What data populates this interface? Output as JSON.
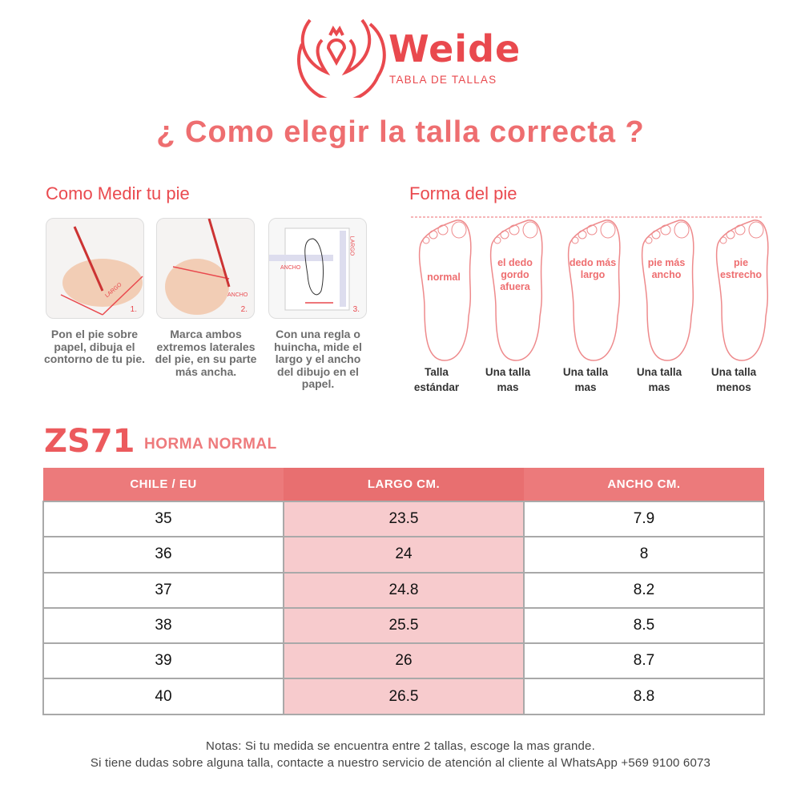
{
  "brand": {
    "name": "Weide",
    "subtitle": "TABLA DE TALLAS",
    "color": "#e9494e"
  },
  "title": "¿ Como elegir la talla correcta ?",
  "measure": {
    "heading": "Como Medir tu pie",
    "steps": [
      {
        "num": "1.",
        "tag": "LARGO",
        "text": "Pon el pie sobre papel, dibuja el contorno de tu pie."
      },
      {
        "num": "2.",
        "tag": "ANCHO",
        "text": "Marca ambos extremos laterales del pie, en su parte más ancha."
      },
      {
        "num": "3.",
        "tag": "ANCHO",
        "tag2": "LARGO",
        "text": "Con una regla o huincha, mide el largo y el ancho del dibujo en el papel."
      }
    ]
  },
  "shape": {
    "heading": "Forma del pie",
    "feet": [
      {
        "label": "normal",
        "caption1": "Talla",
        "caption2": "estándar"
      },
      {
        "label": "el dedo gordo afuera",
        "caption1": "Una talla",
        "caption2": "mas"
      },
      {
        "label": "dedo más largo",
        "caption1": "Una talla",
        "caption2": "mas"
      },
      {
        "label": "pie más ancho",
        "caption1": "Una talla",
        "caption2": "mas"
      },
      {
        "label": "pie estrecho",
        "caption1": "Una talla",
        "caption2": "menos"
      }
    ]
  },
  "model": {
    "code": "ZS71",
    "type": "HORMA NORMAL"
  },
  "table": {
    "headers": [
      "CHILE / EU",
      "LARGO CM.",
      "ANCHO CM."
    ],
    "rows": [
      [
        "35",
        "23.5",
        "7.9"
      ],
      [
        "36",
        "24",
        "8"
      ],
      [
        "37",
        "24.8",
        "8.2"
      ],
      [
        "38",
        "25.5",
        "8.5"
      ],
      [
        "39",
        "26",
        "8.7"
      ],
      [
        "40",
        "26.5",
        "8.8"
      ]
    ],
    "colors": {
      "header": "#ec7a7b",
      "highlight": "#f7cbcd"
    }
  },
  "notes": [
    "Notas: Si tu medida se encuentra entre 2 tallas, escoge la mas grande.",
    "Si tiene dudas sobre alguna talla, contacte a nuestro servicio de atención al cliente al WhatsApp +569 9100 6073"
  ]
}
